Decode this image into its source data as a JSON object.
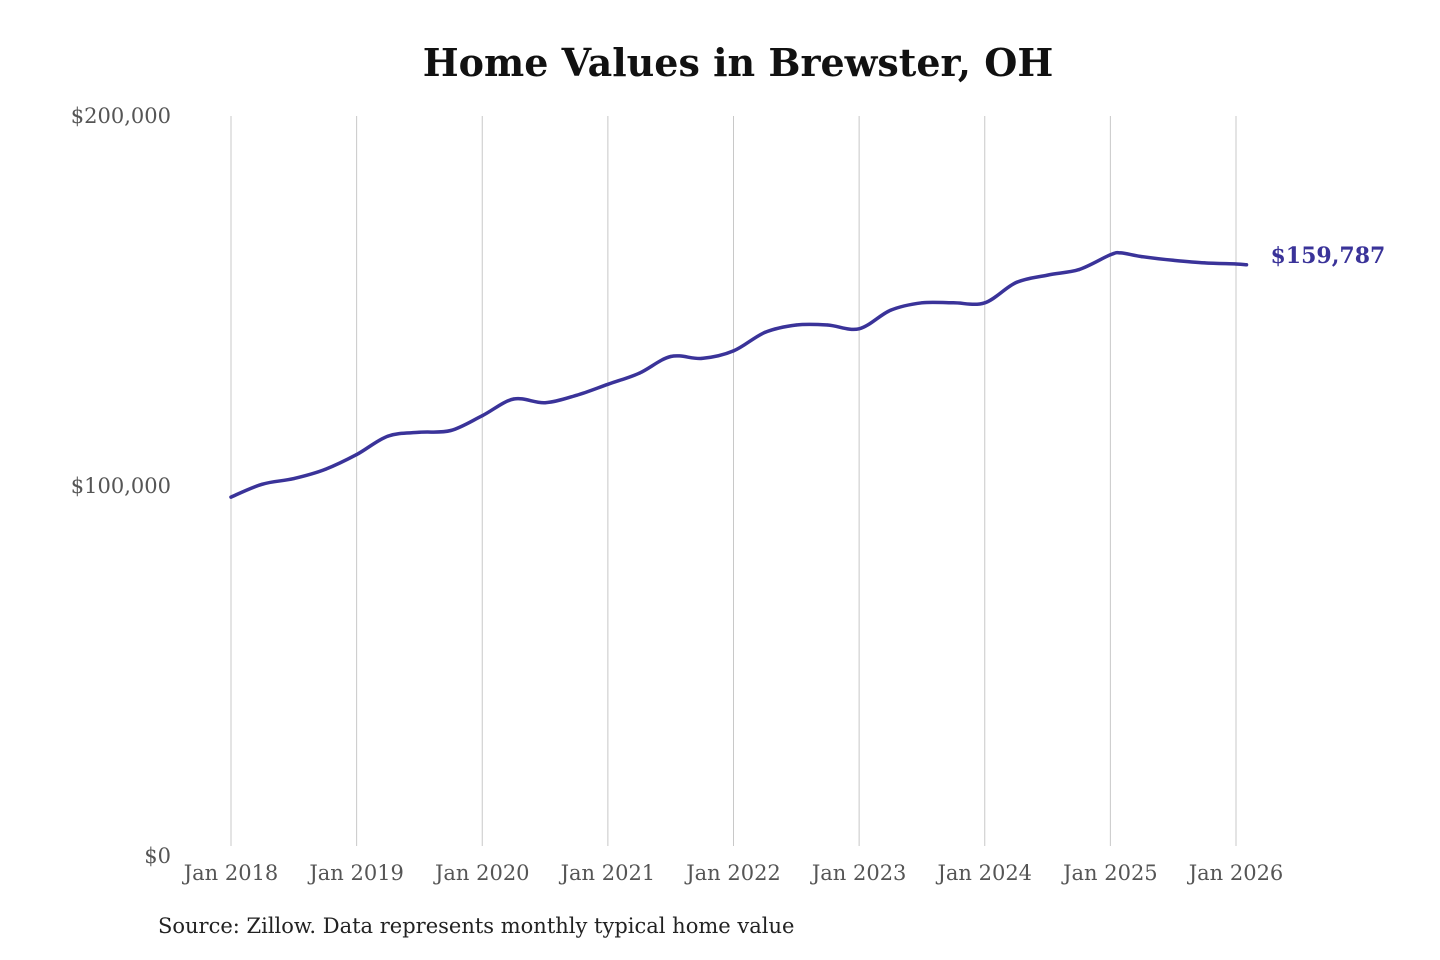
{
  "chart_data": {
    "type": "line",
    "title": "Home Values in Brewster, OH",
    "xlabel": "",
    "ylabel": "",
    "ylim": [
      0,
      200000
    ],
    "y_ticks": [
      0,
      100000,
      200000
    ],
    "y_tick_labels": [
      "$0",
      "$100,000",
      "$200,000"
    ],
    "x_range": [
      "2018-01",
      "2026-02"
    ],
    "x_ticks": [
      "2018-01",
      "2019-01",
      "2020-01",
      "2021-01",
      "2022-01",
      "2023-01",
      "2024-01",
      "2025-01",
      "2026-01"
    ],
    "x_tick_labels": [
      "Jan 2018",
      "Jan 2019",
      "Jan 2020",
      "Jan 2021",
      "Jan 2022",
      "Jan 2023",
      "Jan 2024",
      "Jan 2025",
      "Jan 2026"
    ],
    "grid": "vertical",
    "legend": "none",
    "line_color": "#3a3399",
    "end_value_label": "$159,787",
    "source": "Source: Zillow. Data represents monthly typical home value",
    "series": [
      {
        "x": [
          "2018-01",
          "2018-04",
          "2018-07",
          "2018-10",
          "2019-01",
          "2019-04",
          "2019-07",
          "2019-10",
          "2020-01",
          "2020-04",
          "2020-07",
          "2020-10",
          "2021-01",
          "2021-04",
          "2021-07",
          "2021-10",
          "2022-01",
          "2022-04",
          "2022-07",
          "2022-10",
          "2023-01",
          "2023-04",
          "2023-07",
          "2023-10",
          "2024-01",
          "2024-04",
          "2024-07",
          "2024-10",
          "2025-01",
          "2025-02",
          "2025-04",
          "2025-07",
          "2025-10",
          "2026-01",
          "2026-02"
        ],
        "values": [
          97000,
          100500,
          102000,
          104500,
          108500,
          113500,
          114500,
          115000,
          119000,
          123500,
          122500,
          124500,
          127500,
          130500,
          135000,
          134500,
          136500,
          141500,
          143500,
          143500,
          142500,
          147500,
          149500,
          149500,
          149500,
          155000,
          157000,
          158500,
          162500,
          163000,
          162000,
          161000,
          160300,
          160000,
          159787
        ]
      }
    ]
  }
}
